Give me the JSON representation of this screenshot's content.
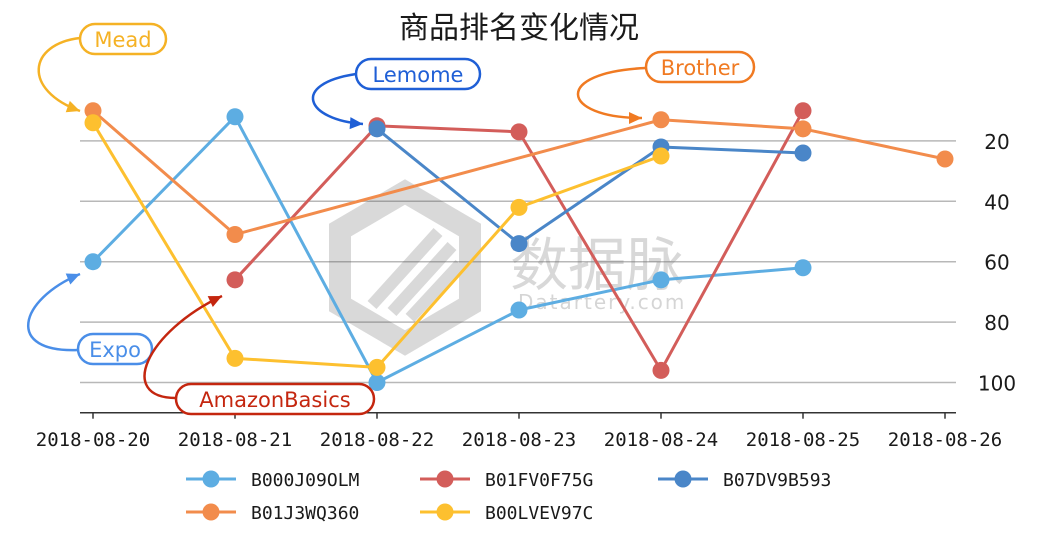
{
  "chart_data": {
    "type": "line",
    "title": "商品排名变化情况",
    "categories": [
      "2018-08-20",
      "2018-08-21",
      "2018-08-22",
      "2018-08-23",
      "2018-08-24",
      "2018-08-25",
      "2018-08-26"
    ],
    "ylim": [
      110,
      0
    ],
    "yticks": [
      20,
      40,
      60,
      80,
      100
    ],
    "y_inverted": true,
    "y_axis_side": "right",
    "grid": "horizontal",
    "legend_position": "bottom",
    "series": [
      {
        "name": "B000J09OLM",
        "color": "#5dade2",
        "values": [
          60,
          12,
          100,
          76,
          66,
          62,
          null
        ]
      },
      {
        "name": "B01FV0F75G",
        "color": "#d35d5a",
        "values": [
          null,
          66,
          15,
          17,
          96,
          10,
          null
        ]
      },
      {
        "name": "B07DV9B593",
        "color": "#4a86c8",
        "values": [
          null,
          null,
          16,
          54,
          22,
          24,
          null
        ]
      },
      {
        "name": "B01J3WQ360",
        "color": "#f28c4c",
        "values": [
          10,
          51,
          null,
          null,
          13,
          16,
          26
        ]
      },
      {
        "name": "B00LVEV97C",
        "color": "#fdc02f",
        "values": [
          14,
          92,
          95,
          42,
          25,
          null,
          null
        ]
      }
    ],
    "annotations": [
      {
        "text": "Mead",
        "color": "#f5b225"
      },
      {
        "text": "Lemome",
        "color": "#1f5fd6"
      },
      {
        "text": "Brother",
        "color": "#f07a22"
      },
      {
        "text": "Expo",
        "color": "#4a8ee8"
      },
      {
        "text": "AmazonBasics",
        "color": "#c4260f"
      }
    ]
  },
  "watermark": {
    "cn": "数据脉",
    "en": "Datartery.com"
  }
}
